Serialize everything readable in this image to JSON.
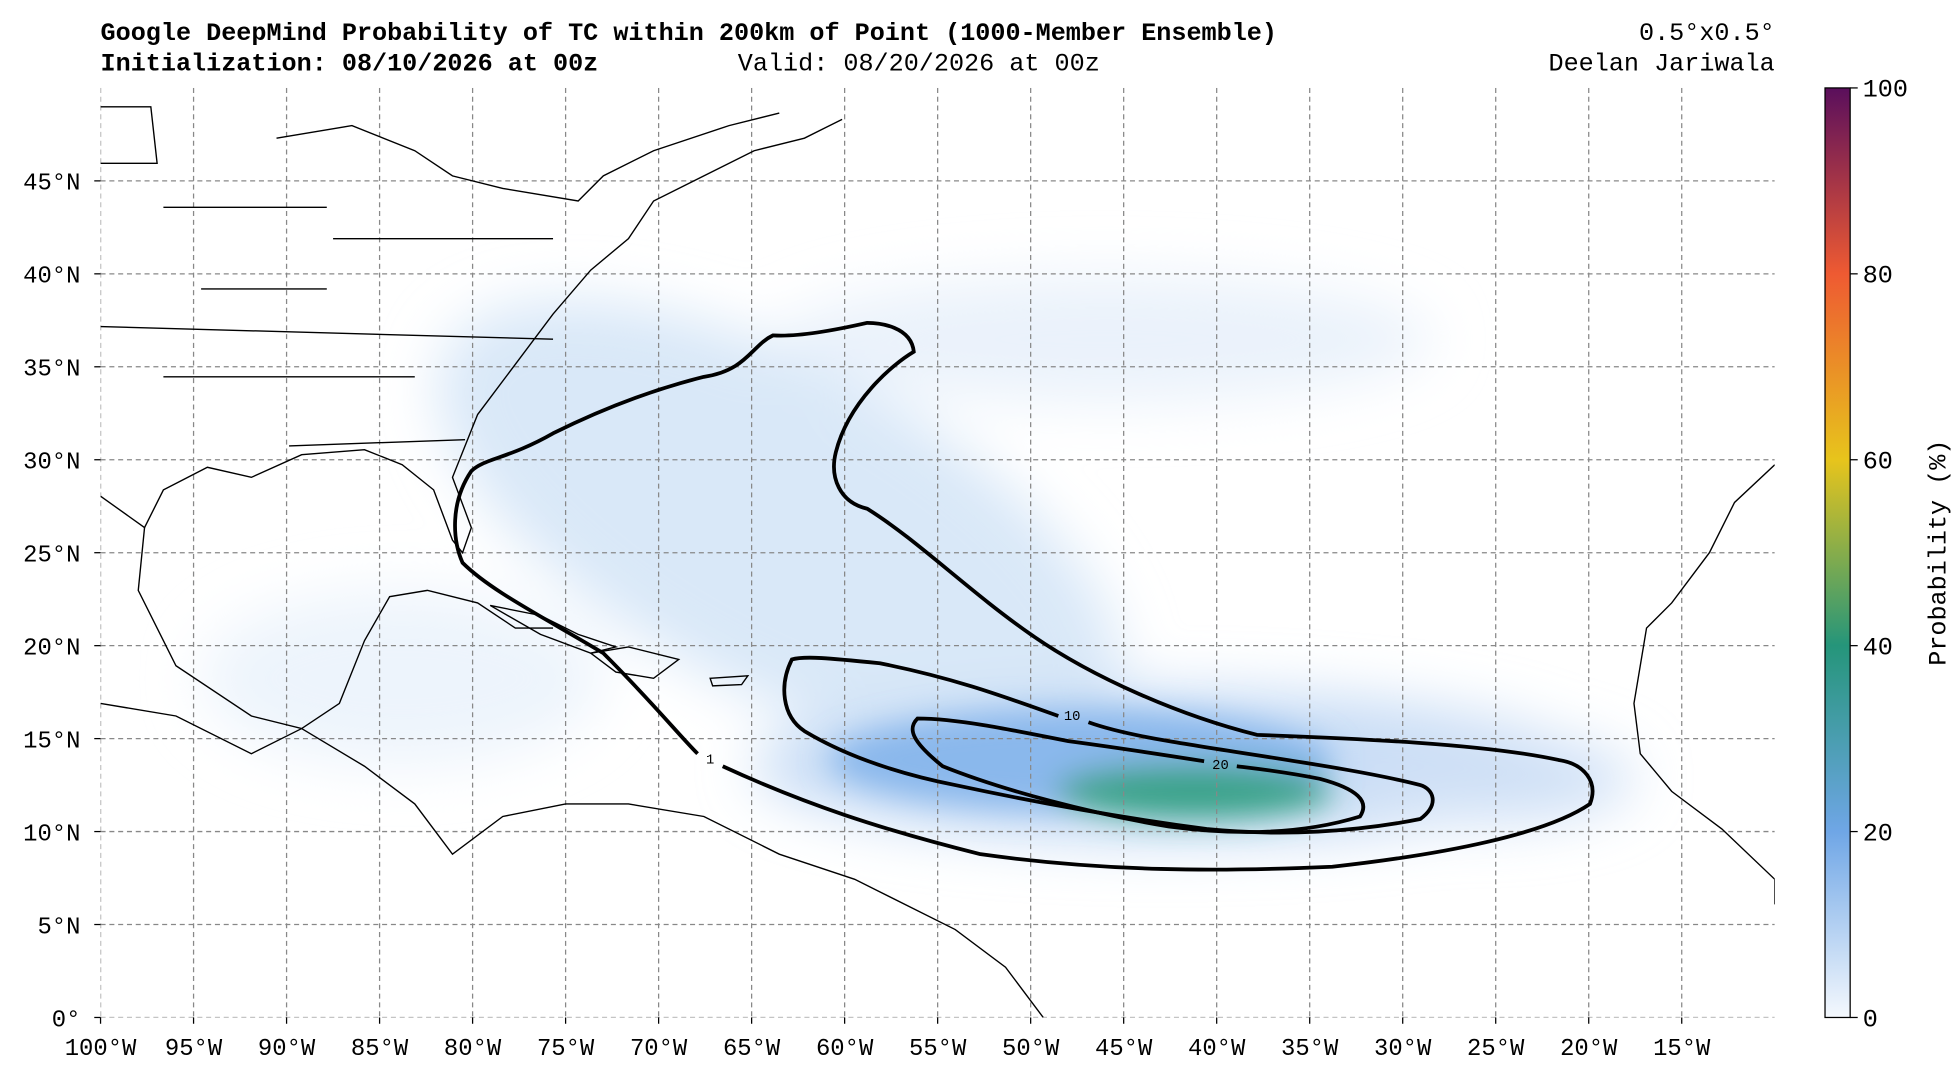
{
  "header": {
    "title": "Google DeepMind Probability of TC within 200km of Point (1000-Member Ensemble)",
    "initialization": "Initialization: 08/10/2026 at 00z",
    "valid": "Valid: 08/20/2026 at 00z",
    "resolution": "0.5°x0.5°",
    "author": "Deelan Jariwala"
  },
  "map": {
    "lon_ticks": [
      {
        "value": -100,
        "label": "100°W"
      },
      {
        "value": -95,
        "label": "95°W"
      },
      {
        "value": -90,
        "label": "90°W"
      },
      {
        "value": -85,
        "label": "85°W"
      },
      {
        "value": -80,
        "label": "80°W"
      },
      {
        "value": -75,
        "label": "75°W"
      },
      {
        "value": -70,
        "label": "70°W"
      },
      {
        "value": -65,
        "label": "65°W"
      },
      {
        "value": -60,
        "label": "60°W"
      },
      {
        "value": -55,
        "label": "55°W"
      },
      {
        "value": -50,
        "label": "50°W"
      },
      {
        "value": -45,
        "label": "45°W"
      },
      {
        "value": -40,
        "label": "40°W"
      },
      {
        "value": -35,
        "label": "35°W"
      },
      {
        "value": -30,
        "label": "30°W"
      },
      {
        "value": -25,
        "label": "25°W"
      },
      {
        "value": -20,
        "label": "20°W"
      },
      {
        "value": -15,
        "label": "15°W"
      }
    ],
    "lat_ticks": [
      {
        "value": 0,
        "label": "0°"
      },
      {
        "value": 5,
        "label": "5°N"
      },
      {
        "value": 10,
        "label": "10°N"
      },
      {
        "value": 15,
        "label": "15°N"
      },
      {
        "value": 20,
        "label": "20°N"
      },
      {
        "value": 25,
        "label": "25°N"
      },
      {
        "value": 30,
        "label": "30°N"
      },
      {
        "value": 35,
        "label": "35°N"
      },
      {
        "value": 40,
        "label": "40°N"
      },
      {
        "value": 45,
        "label": "45°N"
      }
    ],
    "contour_levels": [
      1,
      10,
      20
    ]
  },
  "colorbar": {
    "label": "Probability (%)",
    "range": [
      0,
      100
    ],
    "ticks": [
      0,
      20,
      40,
      60,
      80,
      100
    ]
  }
}
